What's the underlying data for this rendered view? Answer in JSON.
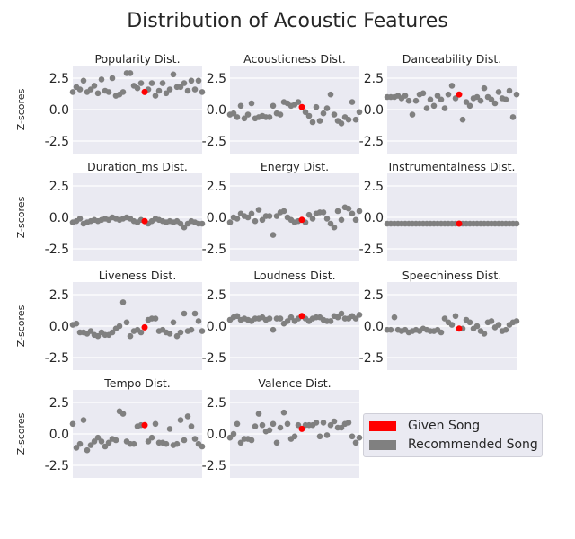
{
  "figure": {
    "title": "Distribution of Acoustic Features"
  },
  "legend": {
    "given": {
      "label": "Given Song",
      "color": "#ff0000"
    },
    "recommended": {
      "label": "Recommended Song",
      "color": "#808080"
    }
  },
  "chart_data": {
    "type": "scatter",
    "title": "Distribution of Acoustic Features",
    "ylabel": "Z-scores",
    "ylim": [
      -3.5,
      3.5
    ],
    "yticks": [
      -2.5,
      0.0,
      2.5
    ],
    "grid": true,
    "legend_position": "right of last row",
    "given_index": 20,
    "panels": [
      {
        "title": "Popularity Dist.",
        "values": [
          1.4,
          1.8,
          1.6,
          2.3,
          1.4,
          1.6,
          1.9,
          1.3,
          2.4,
          1.5,
          1.4,
          2.5,
          1.1,
          1.2,
          1.4,
          2.9,
          2.9,
          1.9,
          1.7,
          2.1,
          1.4,
          1.6,
          2.1,
          1.1,
          1.5,
          2.1,
          1.3,
          1.6,
          2.8,
          1.8,
          1.8,
          2.1,
          1.5,
          2.3,
          1.6,
          2.3,
          1.4
        ]
      },
      {
        "title": "Acousticness Dist.",
        "values": [
          -0.4,
          -0.3,
          -0.6,
          0.3,
          -0.7,
          -0.4,
          0.5,
          -0.7,
          -0.6,
          -0.5,
          -0.6,
          -0.6,
          0.3,
          -0.3,
          -0.4,
          0.6,
          0.5,
          0.3,
          0.4,
          0.6,
          0.2,
          -0.2,
          -0.5,
          -1.0,
          0.2,
          -0.9,
          -0.3,
          0.1,
          1.2,
          -0.4,
          -0.9,
          -1.1,
          -0.6,
          -0.8,
          0.6,
          -0.8,
          -0.2
        ]
      },
      {
        "title": "Danceability Dist.",
        "values": [
          1.0,
          1.0,
          1.0,
          1.1,
          0.9,
          1.1,
          0.7,
          -0.4,
          0.7,
          1.2,
          1.3,
          0.1,
          0.8,
          0.3,
          1.1,
          0.8,
          0.1,
          1.2,
          1.9,
          0.9,
          1.2,
          -0.8,
          0.6,
          0.3,
          0.9,
          1.0,
          0.7,
          1.7,
          1.0,
          0.8,
          0.5,
          1.4,
          0.9,
          0.8,
          1.5,
          -0.6,
          1.2
        ]
      },
      {
        "title": "Duration_ms Dist.",
        "values": [
          -0.4,
          -0.3,
          -0.1,
          -0.5,
          -0.4,
          -0.3,
          -0.2,
          -0.3,
          -0.2,
          -0.1,
          -0.2,
          0.0,
          -0.1,
          -0.2,
          -0.1,
          0.0,
          -0.1,
          -0.3,
          -0.4,
          -0.2,
          -0.3,
          -0.5,
          -0.3,
          -0.1,
          -0.2,
          -0.3,
          -0.4,
          -0.3,
          -0.4,
          -0.3,
          -0.5,
          -0.8,
          -0.5,
          -0.3,
          -0.4,
          -0.5,
          -0.5
        ]
      },
      {
        "title": "Energy Dist.",
        "values": [
          -0.4,
          0.0,
          -0.1,
          0.3,
          0.1,
          0.0,
          0.3,
          -0.3,
          0.6,
          -0.2,
          0.1,
          0.1,
          -1.4,
          0.1,
          0.4,
          0.5,
          0.0,
          -0.2,
          -0.4,
          -0.3,
          -0.2,
          -0.4,
          0.2,
          -0.1,
          0.3,
          0.4,
          0.4,
          -0.1,
          -0.5,
          -0.8,
          0.5,
          -0.2,
          0.8,
          0.7,
          0.3,
          -0.2,
          0.5
        ]
      },
      {
        "title": "Instrumentalness Dist.",
        "values": [
          -0.5,
          -0.5,
          -0.5,
          -0.5,
          -0.5,
          -0.5,
          -0.5,
          -0.5,
          -0.5,
          -0.5,
          -0.5,
          -0.5,
          -0.5,
          -0.5,
          -0.5,
          -0.5,
          -0.5,
          -0.5,
          -0.5,
          -0.5,
          -0.5,
          -0.5,
          -0.5,
          -0.5,
          -0.5,
          -0.5,
          -0.5,
          -0.5,
          -0.5,
          -0.5,
          -0.5,
          -0.5,
          -0.5,
          -0.5,
          -0.5,
          -0.5,
          -0.5
        ]
      },
      {
        "title": "Liveness Dist.",
        "values": [
          0.1,
          0.2,
          -0.5,
          -0.5,
          -0.6,
          -0.4,
          -0.7,
          -0.8,
          -0.5,
          -0.7,
          -0.7,
          -0.5,
          -0.2,
          0.0,
          1.9,
          0.3,
          -0.8,
          -0.4,
          -0.3,
          -0.5,
          -0.1,
          0.5,
          0.6,
          0.6,
          -0.4,
          -0.3,
          -0.5,
          -0.6,
          0.3,
          -0.8,
          -0.5,
          1.0,
          -0.4,
          -0.3,
          1.0,
          0.4,
          -0.4
        ]
      },
      {
        "title": "Loudness Dist.",
        "values": [
          0.5,
          0.7,
          0.8,
          0.5,
          0.6,
          0.5,
          0.4,
          0.6,
          0.6,
          0.7,
          0.5,
          0.6,
          -0.3,
          0.6,
          0.6,
          0.2,
          0.4,
          0.7,
          0.4,
          0.6,
          0.8,
          0.6,
          0.4,
          0.6,
          0.7,
          0.7,
          0.5,
          0.4,
          0.4,
          0.8,
          0.7,
          1.0,
          0.6,
          0.6,
          0.8,
          0.6,
          0.9
        ]
      },
      {
        "title": "Speechiness Dist.",
        "values": [
          -0.3,
          -0.3,
          0.7,
          -0.3,
          -0.4,
          -0.3,
          -0.5,
          -0.4,
          -0.3,
          -0.4,
          -0.2,
          -0.3,
          -0.4,
          -0.4,
          -0.3,
          -0.5,
          0.6,
          0.3,
          0.1,
          0.8,
          -0.2,
          -0.2,
          0.5,
          0.3,
          -0.2,
          0.0,
          -0.4,
          -0.6,
          0.3,
          0.4,
          -0.1,
          0.1,
          -0.4,
          -0.3,
          0.1,
          0.3,
          0.4
        ]
      },
      {
        "title": "Tempo Dist.",
        "values": [
          0.8,
          -1.1,
          -0.8,
          1.1,
          -1.3,
          -0.9,
          -0.6,
          -0.3,
          -0.6,
          -1.0,
          -0.7,
          -0.4,
          -0.5,
          1.8,
          1.6,
          -0.6,
          -0.8,
          -0.8,
          0.6,
          0.7,
          0.7,
          -0.6,
          -0.3,
          0.8,
          -0.7,
          -0.7,
          -0.8,
          0.4,
          -0.9,
          -0.8,
          1.1,
          -0.5,
          1.4,
          0.6,
          -0.4,
          -0.8,
          -1.0
        ]
      },
      {
        "title": "Valence Dist.",
        "values": [
          -0.3,
          0.0,
          0.8,
          -0.7,
          -0.4,
          -0.4,
          -0.5,
          0.6,
          1.6,
          0.7,
          0.2,
          0.3,
          0.8,
          -0.7,
          0.5,
          1.7,
          0.8,
          -0.4,
          -0.2,
          0.7,
          0.4,
          0.7,
          0.7,
          0.7,
          0.9,
          -0.2,
          0.9,
          -0.1,
          0.7,
          1.0,
          0.5,
          0.5,
          0.8,
          0.9,
          -0.2,
          -0.7,
          -0.3
        ]
      }
    ]
  }
}
